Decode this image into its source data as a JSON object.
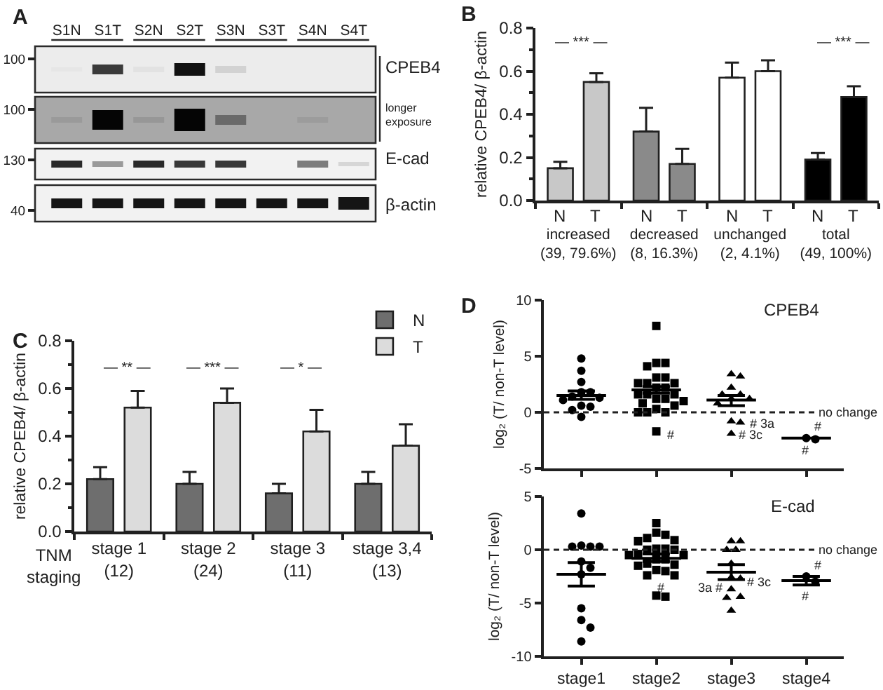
{
  "chart_data": [
    {
      "type": "other",
      "title": "A",
      "categories": [
        "S1N",
        "S1T",
        "S2N",
        "S2T",
        "S3N",
        "S3T",
        "S4N",
        "S4T"
      ],
      "y_categories": [
        "100",
        "100",
        "130",
        "40"
      ],
      "y2_categories": [
        "CPEB4",
        "longer\nexposure",
        "E-cad",
        "β-actin"
      ]
    },
    {
      "type": "bar",
      "title": "B",
      "categories": [
        "increased\n(39, 79.6%)",
        "decreased\n(8, 16.3%)",
        "unchanged\n(2, 4.1%)",
        "total\n(49, 100%)"
      ],
      "series": [
        {
          "name": "N",
          "colors": [
            "#c8c8c8",
            "#8a8a8a",
            "#ffffff",
            "#000000"
          ],
          "values": [
            0.15,
            0.32,
            0.57,
            0.19
          ],
          "errors": [
            [
              0.15,
              0.18
            ],
            [
              0.32,
              0.43
            ],
            [
              0.57,
              0.64
            ],
            [
              0.19,
              0.22
            ]
          ]
        },
        {
          "name": "T",
          "colors": [
            "#c8c8c8",
            "#8a8a8a",
            "#ffffff",
            "#000000"
          ],
          "values": [
            0.55,
            0.17,
            0.6,
            0.48
          ],
          "errors": [
            [
              0.55,
              0.59
            ],
            [
              0.17,
              0.24
            ],
            [
              0.6,
              0.65
            ],
            [
              0.48,
              0.53
            ]
          ]
        }
      ],
      "ylabel": "relative CPEB4/ β-actin",
      "ylim": [
        0,
        0.8
      ],
      "yticks": [
        {
          "value": 0,
          "label": "0.0"
        },
        {
          "value": 0.1,
          "label": null
        },
        0.2,
        {
          "value": 0.3,
          "label": null
        },
        0.4,
        {
          "value": 0.5,
          "label": null
        },
        0.6,
        {
          "value": 0.7,
          "label": null
        },
        0.8
      ],
      "annotations": [
        "— *** —",
        "— *** —"
      ]
    },
    {
      "type": "bar",
      "title": "C",
      "categories": [
        "stage 1\n(12)",
        "stage 2\n(24)",
        "stage 3\n(11)",
        "stage 3,4\n(13)"
      ],
      "xlabel": "TNM\nstaging",
      "legend": "top right",
      "series": [
        {
          "name": "N",
          "color": "#6e6e6e",
          "values": [
            0.22,
            0.2,
            0.16,
            0.2
          ],
          "errors": [
            [
              0.22,
              0.27
            ],
            [
              0.2,
              0.25
            ],
            [
              0.16,
              0.2
            ],
            [
              0.2,
              0.25
            ]
          ]
        },
        {
          "name": "T",
          "color": "#dcdcdc",
          "values": [
            0.52,
            0.54,
            0.42,
            0.36
          ],
          "errors": [
            [
              0.52,
              0.59
            ],
            [
              0.54,
              0.6
            ],
            [
              0.42,
              0.51
            ],
            [
              0.36,
              0.45
            ]
          ]
        }
      ],
      "ylabel": "relative CPEB4/ β-actin",
      "ylim": [
        0,
        0.8
      ],
      "yticks": [
        {
          "value": 0,
          "label": "0.0"
        },
        {
          "value": 0.1,
          "label": null
        },
        0.2,
        {
          "value": 0.3,
          "label": null
        },
        0.4,
        {
          "value": 0.5,
          "label": null
        },
        0.6,
        {
          "value": 0.7,
          "label": null
        },
        0.8
      ],
      "annotations": [
        "— ** —",
        "— *** —",
        "— * —"
      ]
    },
    {
      "type": "scatter",
      "title": "D",
      "subtitle": "CPEB4",
      "ylabel": "log₂ (T/ non-T level)",
      "categories": [
        "stage1",
        "stage2",
        "stage3",
        "stage4"
      ],
      "tick_labels": "y",
      "ylim": [
        -5,
        10
      ],
      "yticks": [
        -5,
        0,
        5,
        10
      ],
      "ref_lines": [
        {
          "axis": "y",
          "value": 0,
          "label": "no change",
          "line_style": "dashed"
        }
      ],
      "series": [
        {
          "type": "box",
          "color": "#000000",
          "boxes": [
            {
              "low": 1.15,
              "q1": 1.5,
              "median": 1.5,
              "q3": 1.5,
              "high": 1.9
            },
            {
              "low": 1.7,
              "q1": 2.0,
              "median": 2.0,
              "q3": 2.0,
              "high": 2.3
            },
            {
              "low": 0.6,
              "q1": 1.1,
              "median": 1.1,
              "q3": 1.1,
              "high": 1.5
            },
            {
              "low": -2.3,
              "q1": -2.3,
              "median": -2.3,
              "q3": -2.3,
              "high": -2.3
            }
          ]
        },
        {
          "color": "#000000",
          "marker": "circle",
          "x": [
            "stage1",
            "stage1",
            "stage1",
            "stage1",
            "stage1",
            "stage1",
            "stage1",
            "stage1",
            "stage1",
            "stage1",
            "stage1",
            "stage1"
          ],
          "values": [
            4.8,
            3.7,
            2.7,
            1.8,
            1.8,
            1.3,
            1.4,
            1.1,
            0.6,
            0.5,
            0.2,
            -0.4
          ]
        },
        {
          "color": "#000000",
          "marker": "square",
          "x": [
            "stage2",
            "stage2",
            "stage2",
            "stage2",
            "stage2",
            "stage2",
            "stage2",
            "stage2",
            "stage2",
            "stage2",
            "stage2",
            "stage2",
            "stage2",
            "stage2",
            "stage2",
            "stage2",
            "stage2",
            "stage2",
            "stage2",
            "stage2",
            "stage2",
            "stage2",
            "stage2",
            "stage2"
          ],
          "values": [
            7.7,
            4.4,
            4.1,
            4.4,
            3.1,
            3.1,
            2.6,
            2.6,
            2.6,
            2.2,
            2.2,
            1.6,
            1.6,
            1.6,
            1.2,
            1.2,
            1.0,
            0.8,
            0.6,
            0.3,
            0.0,
            0.0,
            0.0,
            -1.7
          ]
        },
        {
          "color": "#000000",
          "marker": "triangle",
          "x": [
            "stage3",
            "stage3",
            "stage3",
            "stage3",
            "stage3",
            "stage3",
            "stage3",
            "stage3",
            "stage3",
            "stage3",
            "stage3"
          ],
          "values": [
            3.2,
            3.4,
            2.2,
            1.6,
            1.6,
            1.2,
            1.2,
            0.8,
            -0.8,
            -0.9,
            -1.9
          ]
        },
        {
          "color": "#000000",
          "marker": "circle",
          "x": [
            "stage4",
            "stage4"
          ],
          "values": [
            -2.4,
            -2.3
          ]
        }
      ],
      "annotations": [
        "#",
        "# 3a",
        "# 3c",
        "#",
        "#"
      ]
    },
    {
      "type": "scatter",
      "subtitle": "E-cad",
      "ylabel": "log₂ (T/ non-T level)",
      "categories": [
        "stage1",
        "stage2",
        "stage3",
        "stage4"
      ],
      "ylim": [
        -10,
        5
      ],
      "yticks": [
        -10,
        -5,
        0,
        5
      ],
      "ref_lines": [
        {
          "axis": "y",
          "value": 0,
          "label": "no change",
          "line_style": "dashed"
        }
      ],
      "series": [
        {
          "type": "box",
          "color": "#000000",
          "boxes": [
            {
              "low": -3.4,
              "q1": -2.3,
              "median": -2.3,
              "q3": -2.3,
              "high": -1.2
            },
            {
              "low": -1.1,
              "q1": -0.8,
              "median": -0.8,
              "q3": -0.8,
              "high": -0.4
            },
            {
              "low": -2.8,
              "q1": -2.1,
              "median": -2.1,
              "q3": -2.1,
              "high": -1.4
            },
            {
              "low": -3.3,
              "q1": -2.9,
              "median": -2.9,
              "q3": -2.9,
              "high": -2.5
            }
          ]
        },
        {
          "color": "#000000",
          "marker": "circle",
          "x": [
            "stage1",
            "stage1",
            "stage1",
            "stage1",
            "stage1",
            "stage1",
            "stage1",
            "stage1",
            "stage1",
            "stage1",
            "stage1",
            "stage1"
          ],
          "values": [
            3.4,
            0.3,
            0.4,
            0.3,
            0.3,
            -1.1,
            -1.7,
            -2.3,
            -5.5,
            -6.6,
            -7.3,
            -8.6
          ]
        },
        {
          "color": "#000000",
          "marker": "square",
          "x": [
            "stage2",
            "stage2",
            "stage2",
            "stage2",
            "stage2",
            "stage2",
            "stage2",
            "stage2",
            "stage2",
            "stage2",
            "stage2",
            "stage2",
            "stage2",
            "stage2",
            "stage2",
            "stage2",
            "stage2",
            "stage2",
            "stage2",
            "stage2",
            "stage2",
            "stage2",
            "stage2",
            "stage2"
          ],
          "values": [
            2.5,
            1.6,
            1.4,
            1.1,
            0.9,
            0.8,
            0.0,
            0.1,
            0.1,
            0.0,
            -0.4,
            -0.5,
            -0.5,
            -0.9,
            -0.9,
            -1.4,
            -1.5,
            -1.3,
            -1.9,
            -2.0,
            -2.4,
            -2.4,
            -4.3,
            -4.4
          ]
        },
        {
          "color": "#000000",
          "marker": "triangle",
          "x": [
            "stage3",
            "stage3",
            "stage3",
            "stage3",
            "stage3",
            "stage3",
            "stage3",
            "stage3",
            "stage3",
            "stage3",
            "stage3"
          ],
          "values": [
            0.8,
            0.8,
            0.0,
            0.0,
            -1.3,
            -2.6,
            -2.7,
            -3.7,
            -4.4,
            -4.5,
            -5.7
          ]
        },
        {
          "color": "#000000",
          "marker": "circle",
          "x": [
            "stage4",
            "stage4"
          ],
          "values": [
            -3.0,
            -2.5
          ]
        }
      ],
      "annotations": [
        "#",
        "3a #",
        "# 3c",
        "#",
        "#"
      ]
    }
  ]
}
